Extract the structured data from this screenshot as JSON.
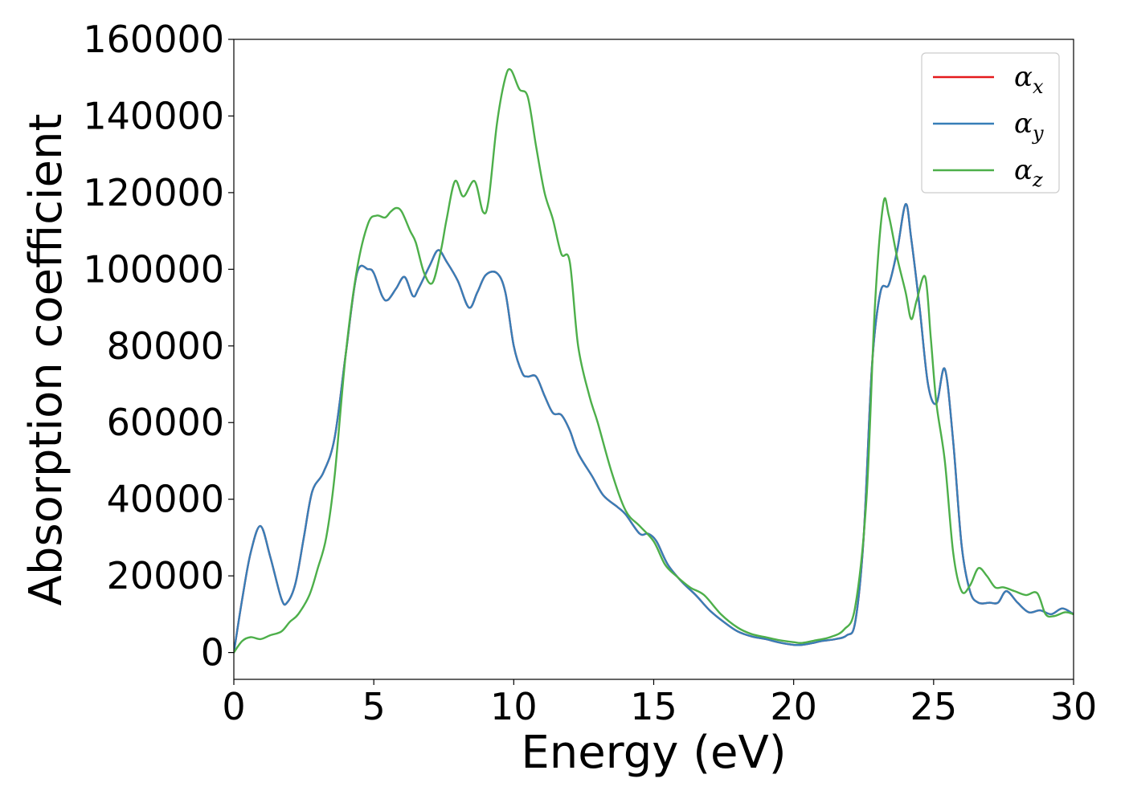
{
  "chart_data": {
    "type": "line",
    "title": "",
    "xlabel": "Energy (eV)",
    "ylabel": "Absorption coefficient",
    "xlim": [
      0,
      30
    ],
    "ylim": [
      -7000,
      160000
    ],
    "xticks": [
      0,
      5,
      10,
      15,
      20,
      25,
      30
    ],
    "yticks": [
      0,
      20000,
      40000,
      60000,
      80000,
      100000,
      120000,
      140000,
      160000
    ],
    "grid": false,
    "legend_position": "top-right",
    "series": [
      {
        "name": "α",
        "subscript": "x",
        "color": "#e41a1c",
        "x": [
          0,
          0.3,
          0.6,
          0.95,
          1.3,
          1.7,
          1.9,
          2.2,
          2.5,
          2.8,
          3.2,
          3.6,
          4.0,
          4.4,
          4.8,
          5.0,
          5.3,
          5.5,
          5.8,
          6.1,
          6.4,
          6.6,
          7.0,
          7.3,
          7.6,
          8.0,
          8.4,
          8.7,
          9.0,
          9.4,
          9.7,
          10.0,
          10.3,
          10.5,
          10.8,
          11.1,
          11.4,
          11.7,
          12.0,
          12.3,
          12.8,
          13.2,
          13.7,
          14.0,
          14.5,
          14.8,
          15.1,
          15.5,
          16.0,
          16.5,
          17.0,
          17.5,
          18.0,
          18.5,
          19.0,
          19.5,
          20.0,
          20.3,
          20.7,
          21.0,
          21.5,
          21.9,
          22.2,
          22.5,
          22.8,
          23.1,
          23.4,
          23.7,
          24.0,
          24.2,
          24.5,
          24.8,
          25.1,
          25.4,
          25.7,
          26.0,
          26.3,
          26.6,
          27.0,
          27.3,
          27.6,
          28.0,
          28.4,
          28.8,
          29.2,
          29.6,
          30.0
        ],
        "y": [
          0,
          14000,
          26000,
          33000,
          25000,
          14000,
          13000,
          18000,
          30000,
          42000,
          47000,
          56000,
          78000,
          99000,
          100000,
          99000,
          93000,
          92000,
          95000,
          98000,
          93000,
          95000,
          101000,
          105000,
          102000,
          97000,
          90000,
          94000,
          98500,
          99000,
          94000,
          80000,
          73000,
          72000,
          72000,
          67000,
          62500,
          62000,
          58000,
          52000,
          46000,
          41000,
          38000,
          36000,
          31000,
          31000,
          29000,
          23000,
          18500,
          15000,
          11000,
          8000,
          5500,
          4200,
          3500,
          2600,
          2000,
          2000,
          2500,
          3000,
          3500,
          4500,
          8000,
          30000,
          75000,
          94000,
          96000,
          105000,
          117000,
          108000,
          90000,
          70000,
          65000,
          74000,
          55000,
          28000,
          16000,
          13000,
          13000,
          13000,
          16000,
          13000,
          10500,
          11000,
          10000,
          11500,
          10000
        ]
      },
      {
        "name": "α",
        "subscript": "y",
        "color": "#377eb8",
        "x": [
          0,
          0.3,
          0.6,
          0.95,
          1.3,
          1.7,
          1.9,
          2.2,
          2.5,
          2.8,
          3.2,
          3.6,
          4.0,
          4.4,
          4.8,
          5.0,
          5.3,
          5.5,
          5.8,
          6.1,
          6.4,
          6.6,
          7.0,
          7.3,
          7.6,
          8.0,
          8.4,
          8.7,
          9.0,
          9.4,
          9.7,
          10.0,
          10.3,
          10.5,
          10.8,
          11.1,
          11.4,
          11.7,
          12.0,
          12.3,
          12.8,
          13.2,
          13.7,
          14.0,
          14.5,
          14.8,
          15.1,
          15.5,
          16.0,
          16.5,
          17.0,
          17.5,
          18.0,
          18.5,
          19.0,
          19.5,
          20.0,
          20.3,
          20.7,
          21.0,
          21.5,
          21.9,
          22.2,
          22.5,
          22.8,
          23.1,
          23.4,
          23.7,
          24.0,
          24.2,
          24.5,
          24.8,
          25.1,
          25.4,
          25.7,
          26.0,
          26.3,
          26.6,
          27.0,
          27.3,
          27.6,
          28.0,
          28.4,
          28.8,
          29.2,
          29.6,
          30.0
        ],
        "y": [
          0,
          14000,
          26000,
          33000,
          25000,
          14000,
          13000,
          18000,
          30000,
          42000,
          47000,
          56000,
          78000,
          99000,
          100000,
          99000,
          93000,
          92000,
          95000,
          98000,
          93000,
          95000,
          101000,
          105000,
          102000,
          97000,
          90000,
          94000,
          98500,
          99000,
          94000,
          80000,
          73000,
          72000,
          72000,
          67000,
          62500,
          62000,
          58000,
          52000,
          46000,
          41000,
          38000,
          36000,
          31000,
          31000,
          29000,
          23000,
          18500,
          15000,
          11000,
          8000,
          5500,
          4200,
          3500,
          2600,
          2000,
          2000,
          2500,
          3000,
          3500,
          4500,
          8000,
          30000,
          75000,
          94000,
          96000,
          105000,
          117000,
          108000,
          90000,
          70000,
          65000,
          74000,
          55000,
          28000,
          16000,
          13000,
          13000,
          13000,
          16000,
          13000,
          10500,
          11000,
          10000,
          11500,
          10000
        ]
      },
      {
        "name": "α",
        "subscript": "z",
        "color": "#4daf4a",
        "x": [
          0,
          0.3,
          0.6,
          0.95,
          1.3,
          1.7,
          2.0,
          2.3,
          2.7,
          3.0,
          3.3,
          3.6,
          4.0,
          4.4,
          4.8,
          5.1,
          5.4,
          5.6,
          5.8,
          6.0,
          6.3,
          6.5,
          6.8,
          7.1,
          7.4,
          7.6,
          7.9,
          8.2,
          8.6,
          8.9,
          9.1,
          9.4,
          9.7,
          9.9,
          10.2,
          10.5,
          10.8,
          11.1,
          11.4,
          11.7,
          12.0,
          12.3,
          12.7,
          13.0,
          13.5,
          14.0,
          14.5,
          15.0,
          15.4,
          15.8,
          16.3,
          16.8,
          17.4,
          18.0,
          18.5,
          19.0,
          19.5,
          20.0,
          20.3,
          20.8,
          21.3,
          21.8,
          22.2,
          22.6,
          22.9,
          23.2,
          23.4,
          23.7,
          24.0,
          24.2,
          24.4,
          24.7,
          24.9,
          25.1,
          25.4,
          25.7,
          26.0,
          26.3,
          26.6,
          26.9,
          27.2,
          27.5,
          27.9,
          28.3,
          28.7,
          29.0,
          29.3,
          29.7,
          30.0
        ],
        "y": [
          0,
          3000,
          4000,
          3500,
          4500,
          5500,
          8000,
          10000,
          15000,
          22000,
          30000,
          46000,
          78000,
          100000,
          112000,
          114000,
          113500,
          115000,
          116000,
          115000,
          110000,
          107000,
          99000,
          96500,
          105000,
          113000,
          123000,
          119000,
          123000,
          115000,
          118000,
          138000,
          150000,
          152000,
          147000,
          145000,
          132000,
          120000,
          113000,
          104000,
          102000,
          80000,
          67000,
          60000,
          47000,
          37000,
          33000,
          29000,
          23000,
          20000,
          17000,
          15000,
          10000,
          6500,
          4800,
          4000,
          3200,
          2700,
          2500,
          3200,
          4000,
          6000,
          12000,
          40000,
          90000,
          117000,
          114000,
          103000,
          94000,
          87000,
          92000,
          98000,
          82000,
          65000,
          50000,
          26000,
          16000,
          17500,
          22000,
          20000,
          17000,
          17000,
          16000,
          15000,
          15500,
          10000,
          9500,
          10500,
          10000
        ]
      }
    ]
  }
}
